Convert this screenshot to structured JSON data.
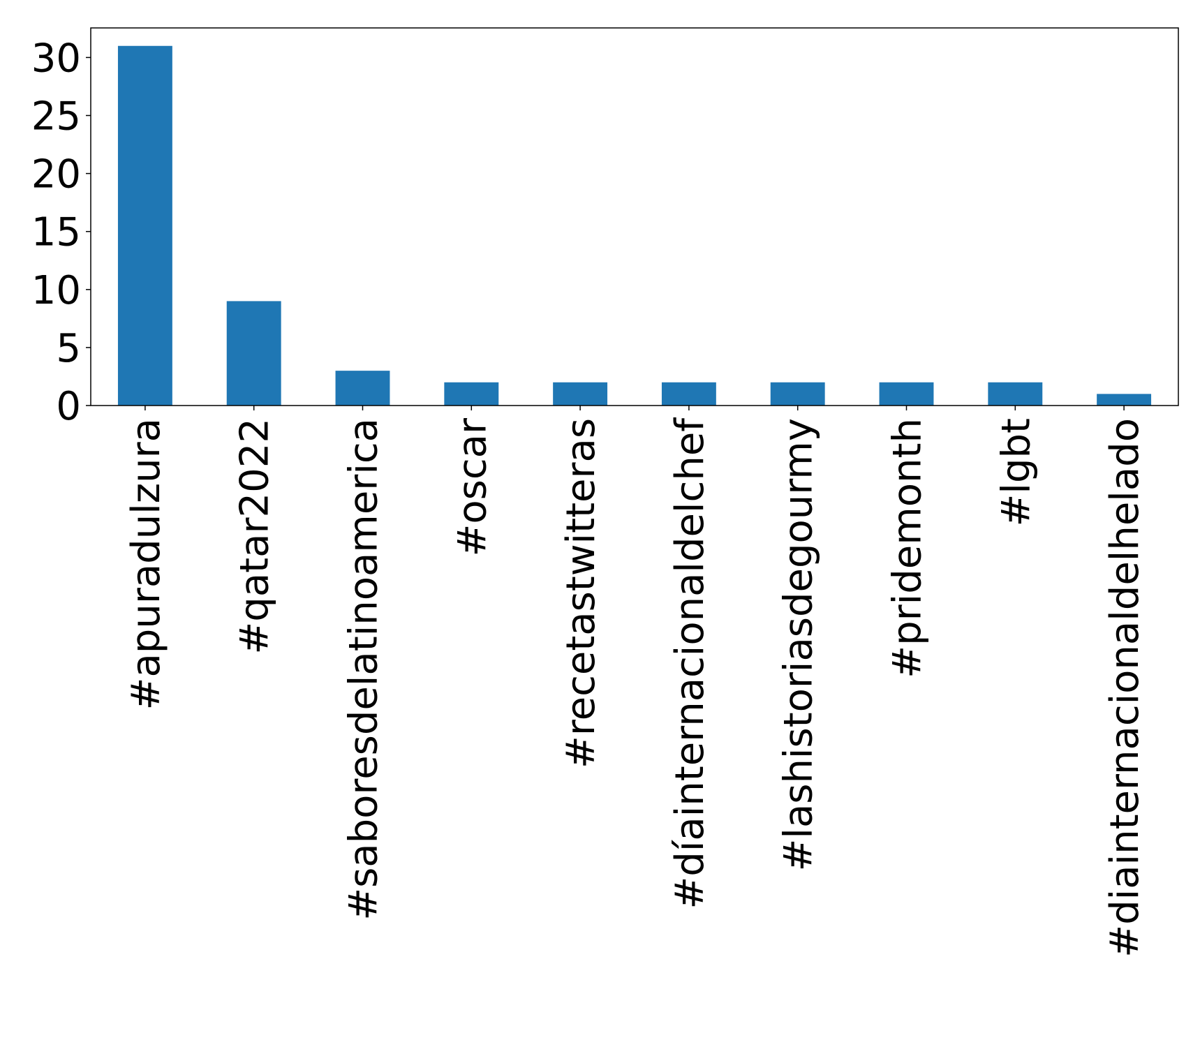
{
  "chart_data": {
    "type": "bar",
    "title": "",
    "xlabel": "",
    "ylabel": "",
    "categories": [
      "#apuradulzura",
      "#qatar2022",
      "#saboresdelatinoamerica",
      "#oscar",
      "#recetastwitteras",
      "#díainternacionaldelchef",
      "#lashistoriasdegourmy",
      "#pridemonth",
      "#lgbt",
      "#diainternacionaldelhelado"
    ],
    "values": [
      31,
      9,
      3,
      2,
      2,
      2,
      2,
      2,
      2,
      1
    ],
    "ylim": [
      0,
      32.55
    ],
    "yticks": [
      0,
      5,
      10,
      15,
      20,
      25,
      30
    ],
    "bar_color": "#1f77b4",
    "grid": false,
    "legend": "none"
  }
}
